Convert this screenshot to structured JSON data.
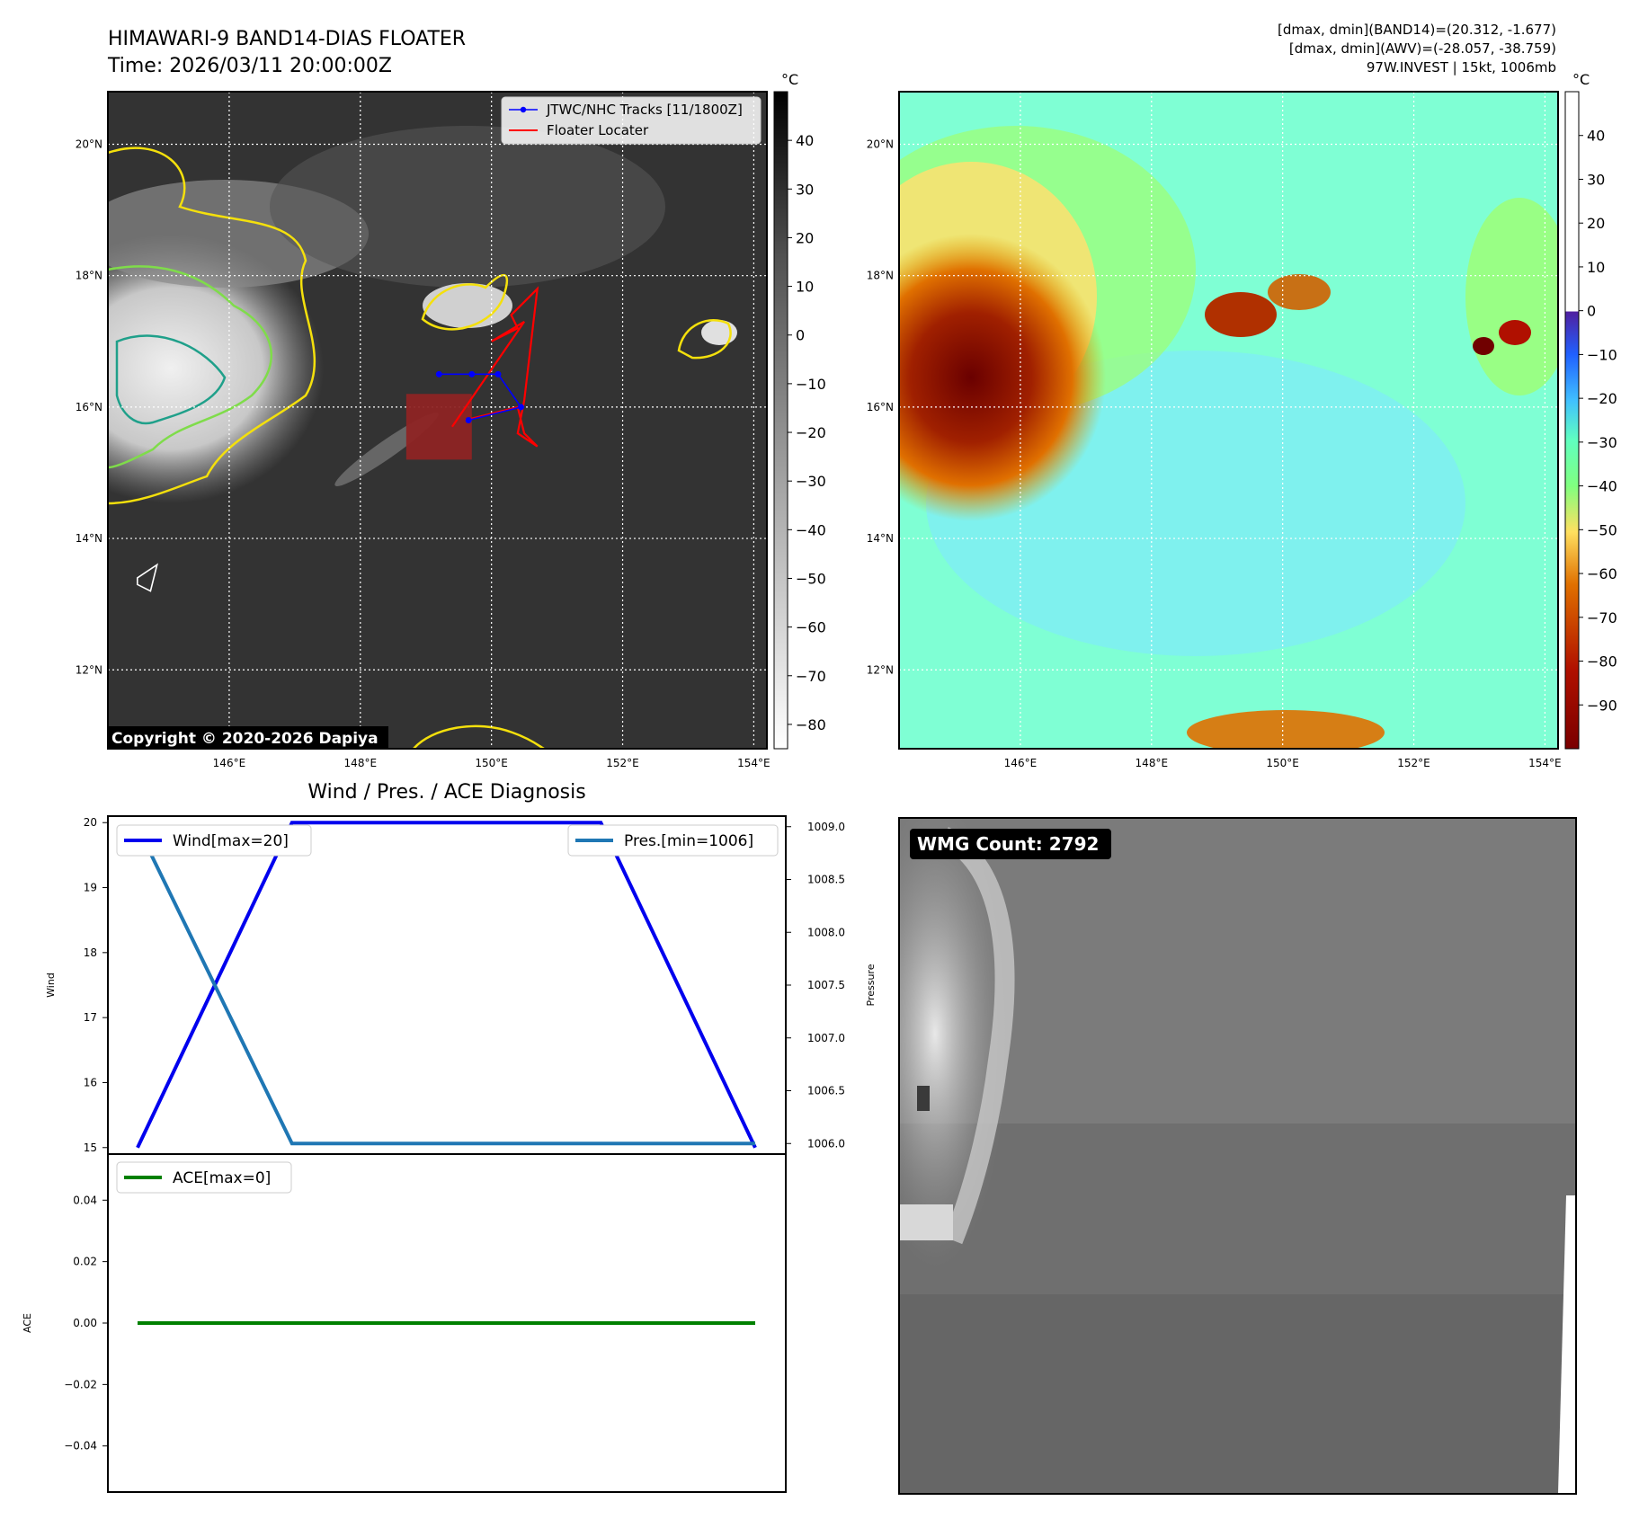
{
  "header": {
    "title_line1": "HIMAWARI-9 BAND14-DIAS FLOATER",
    "title_line2": "Time: 2026/03/11 20:00:00Z",
    "info_line1": "[dmax, dmin](BAND14)=(20.312, -1.677)",
    "info_line2": "[dmax, dmin](AWV)=(-28.057, -38.759)",
    "info_line3": "97W.INVEST | 15kt, 1006mb"
  },
  "colors": {
    "track": "#0000ff",
    "locater": "#ff0000",
    "wind": "#0000ee",
    "pressure": "#1f77b4",
    "ace": "#008000",
    "ir_background": "#333333",
    "awv_background": "#7fffd4"
  },
  "maps": {
    "lon_ticks": [
      "146°E",
      "148°E",
      "150°E",
      "152°E",
      "154°E"
    ],
    "lon_values": [
      146,
      148,
      150,
      152,
      154
    ],
    "lat_ticks": [
      "20°N",
      "18°N",
      "16°N",
      "14°N",
      "12°N"
    ],
    "lat_values": [
      20,
      18,
      16,
      14,
      12
    ],
    "lon_range": [
      144.15,
      154.2
    ],
    "lat_range": [
      10.8,
      20.8
    ],
    "colorbar_unit": "°C",
    "ir_colorbar_ticks": [
      "40",
      "30",
      "20",
      "10",
      "0",
      "−10",
      "−20",
      "−30",
      "−40",
      "−50",
      "−60",
      "−70",
      "−80"
    ],
    "ir_colorbar_values": [
      40,
      30,
      20,
      10,
      0,
      -10,
      -20,
      -30,
      -40,
      -50,
      -60,
      -70,
      -80
    ],
    "ir_colorbar_range": [
      -85,
      50
    ],
    "awv_colorbar_ticks": [
      "40",
      "30",
      "20",
      "10",
      "0",
      "−10",
      "−20",
      "−30",
      "−40",
      "−50",
      "−60",
      "−70",
      "−80",
      "−90"
    ],
    "awv_colorbar_values": [
      40,
      30,
      20,
      10,
      0,
      -10,
      -20,
      -30,
      -40,
      -50,
      -60,
      -70,
      -80,
      -90
    ],
    "awv_colorbar_range": [
      -100,
      50
    ],
    "legend_track": "JTWC/NHC Tracks [11/1800Z]",
    "legend_locater": "Floater Locater",
    "copyright": "Copyright © 2020-2026 Dapiya",
    "track_points": [
      [
        149.2,
        16.5
      ],
      [
        149.7,
        16.5
      ],
      [
        150.1,
        16.5
      ],
      [
        150.45,
        16.0
      ],
      [
        149.65,
        15.8
      ]
    ],
    "locater_path": [
      [
        149.6,
        15.8
      ],
      [
        150.4,
        16.0
      ],
      [
        150.5,
        15.6
      ],
      [
        150.7,
        15.4
      ],
      [
        150.4,
        15.6
      ],
      [
        150.5,
        16.1
      ],
      [
        150.7,
        17.8
      ],
      [
        150.3,
        17.4
      ],
      [
        150.4,
        17.2
      ],
      [
        150.0,
        17.0
      ],
      [
        150.5,
        17.3
      ],
      [
        149.4,
        15.7
      ]
    ],
    "floater_box": {
      "lon": [
        148.7,
        149.7
      ],
      "lat": [
        15.2,
        16.2
      ]
    },
    "guam_shape": [
      [
        144.6,
        13.4
      ],
      [
        144.9,
        13.6
      ],
      [
        144.8,
        13.2
      ],
      [
        144.6,
        13.3
      ]
    ],
    "wmg_count": "WMG Count: 2792"
  },
  "chart_data": [
    {
      "type": "line",
      "title": "Wind / Pres. / ACE Diagnosis",
      "x": [
        0,
        1,
        2,
        3,
        4
      ],
      "series": [
        {
          "name": "Wind[max=20]",
          "axis": "left",
          "values": [
            15,
            20,
            20,
            20,
            15
          ]
        },
        {
          "name": "Pres.[min=1006]",
          "axis": "right",
          "values": [
            1009,
            1006,
            1006,
            1006,
            1006
          ]
        }
      ],
      "ylabel": "Wind",
      "ylabel_right": "Pressure",
      "ylim": [
        14.9,
        20.1
      ],
      "ylim_right": [
        1005.9,
        1009.1
      ],
      "yticks": [
        "20",
        "19",
        "18",
        "17",
        "16",
        "15"
      ],
      "yticks_values": [
        20,
        19,
        18,
        17,
        16,
        15
      ],
      "yticks_right": [
        "1009.0",
        "1008.5",
        "1008.0",
        "1007.5",
        "1007.0",
        "1006.5",
        "1006.0"
      ],
      "yticks_right_values": [
        1009,
        1008.5,
        1008,
        1007.5,
        1007,
        1006.5,
        1006
      ],
      "legend": "top-left / top-right"
    },
    {
      "type": "line",
      "x": [
        0,
        1,
        2,
        3,
        4
      ],
      "series": [
        {
          "name": "ACE[max=0]",
          "values": [
            0,
            0,
            0,
            0,
            0
          ]
        }
      ],
      "ylabel": "ACE",
      "ylim": [
        -0.055,
        0.055
      ],
      "yticks": [
        "0.04",
        "0.02",
        "0.00",
        "−0.02",
        "−0.04"
      ],
      "yticks_values": [
        0.04,
        0.02,
        0.0,
        -0.02,
        -0.04
      ],
      "legend": "top-left"
    }
  ]
}
